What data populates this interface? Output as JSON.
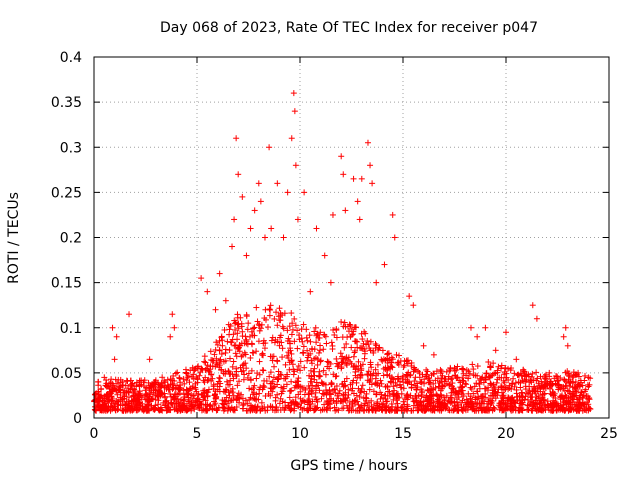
{
  "chart_data": {
    "type": "scatter",
    "title": "Day 068 of 2023, Rate Of TEC Index for receiver p047",
    "xlabel": "GPS time / hours",
    "ylabel": "ROTI / TECUs",
    "xlim": [
      0,
      25
    ],
    "ylim": [
      0,
      0.4
    ],
    "xticks": [
      0,
      5,
      10,
      15,
      20,
      25
    ],
    "yticks": [
      0,
      0.05,
      0.1,
      0.15,
      0.2,
      0.25,
      0.3,
      0.35,
      0.4
    ],
    "xtick_labels": [
      "0",
      "5",
      "10",
      "15",
      "20",
      "25"
    ],
    "ytick_labels": [
      "0",
      "0.05",
      "0.1",
      "0.15",
      "0.2",
      "0.25",
      "0.3",
      "0.35",
      "0.4"
    ],
    "grid": true,
    "marker": "plus",
    "color": "#ff0000",
    "series": [
      {
        "points": [
          [
            0.2,
            0.04
          ],
          [
            0.5,
            0.045
          ],
          [
            0.9,
            0.1
          ],
          [
            1.0,
            0.065
          ],
          [
            1.1,
            0.09
          ],
          [
            1.7,
            0.115
          ],
          [
            2.7,
            0.065
          ],
          [
            3.7,
            0.09
          ],
          [
            3.8,
            0.115
          ],
          [
            3.9,
            0.1
          ],
          [
            5.2,
            0.155
          ],
          [
            5.5,
            0.14
          ],
          [
            5.9,
            0.12
          ],
          [
            6.1,
            0.16
          ],
          [
            6.4,
            0.13
          ],
          [
            6.7,
            0.19
          ],
          [
            6.8,
            0.22
          ],
          [
            6.9,
            0.31
          ],
          [
            7.0,
            0.27
          ],
          [
            7.2,
            0.245
          ],
          [
            7.4,
            0.18
          ],
          [
            7.6,
            0.21
          ],
          [
            7.8,
            0.23
          ],
          [
            8.0,
            0.26
          ],
          [
            8.1,
            0.24
          ],
          [
            8.3,
            0.2
          ],
          [
            8.5,
            0.3
          ],
          [
            8.6,
            0.21
          ],
          [
            8.9,
            0.26
          ],
          [
            9.2,
            0.2
          ],
          [
            9.4,
            0.25
          ],
          [
            9.6,
            0.31
          ],
          [
            9.7,
            0.36
          ],
          [
            9.75,
            0.34
          ],
          [
            9.8,
            0.28
          ],
          [
            9.9,
            0.22
          ],
          [
            10.2,
            0.25
          ],
          [
            10.5,
            0.14
          ],
          [
            10.8,
            0.21
          ],
          [
            11.2,
            0.18
          ],
          [
            11.5,
            0.15
          ],
          [
            11.6,
            0.225
          ],
          [
            12.0,
            0.29
          ],
          [
            12.1,
            0.27
          ],
          [
            12.2,
            0.23
          ],
          [
            12.6,
            0.265
          ],
          [
            12.8,
            0.24
          ],
          [
            12.9,
            0.22
          ],
          [
            13.0,
            0.265
          ],
          [
            13.3,
            0.305
          ],
          [
            13.4,
            0.28
          ],
          [
            13.5,
            0.26
          ],
          [
            13.7,
            0.15
          ],
          [
            14.1,
            0.17
          ],
          [
            14.5,
            0.225
          ],
          [
            14.6,
            0.2
          ],
          [
            15.3,
            0.135
          ],
          [
            15.5,
            0.125
          ],
          [
            16.0,
            0.08
          ],
          [
            16.5,
            0.07
          ],
          [
            17.5,
            0.055
          ],
          [
            18.3,
            0.1
          ],
          [
            18.6,
            0.09
          ],
          [
            19.0,
            0.1
          ],
          [
            19.5,
            0.075
          ],
          [
            20.0,
            0.095
          ],
          [
            20.5,
            0.065
          ],
          [
            21.3,
            0.125
          ],
          [
            21.5,
            0.11
          ],
          [
            22.1,
            0.05
          ],
          [
            22.8,
            0.09
          ],
          [
            22.9,
            0.1
          ],
          [
            23.0,
            0.08
          ],
          [
            23.5,
            0.05
          ],
          [
            24.0,
            0.045
          ]
        ]
      }
    ]
  }
}
